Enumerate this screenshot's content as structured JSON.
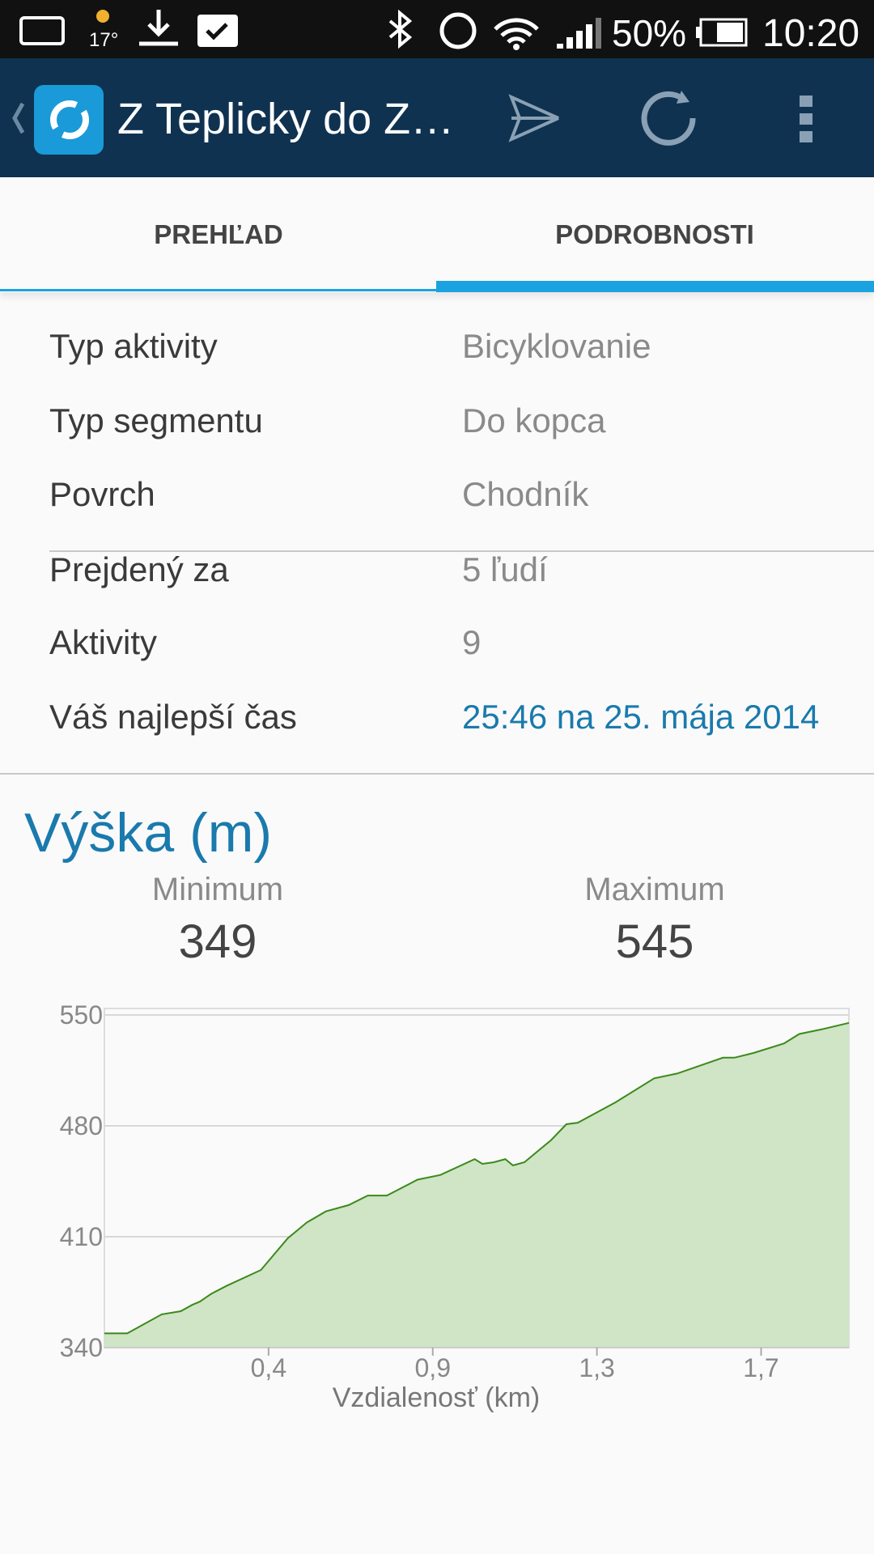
{
  "status_bar": {
    "temperature": "17°",
    "battery": "50%",
    "time": "10:20"
  },
  "app_bar": {
    "title": "Z Teplicky do Z…"
  },
  "tabs": [
    "PREHĽAD",
    "PODROBNOSTI"
  ],
  "details": [
    {
      "label": "Typ aktivity",
      "value": "Bicyklovanie"
    },
    {
      "label": "Typ segmentu",
      "value": "Do kopca"
    },
    {
      "label": "Povrch",
      "value": "Chodník"
    },
    {
      "label": "Prejdený za",
      "value": "5 ľudí"
    },
    {
      "label": "Aktivity",
      "value": "9"
    },
    {
      "label": "Váš najlepší čas",
      "value": "25:46 na 25. mája 2014"
    }
  ],
  "elevation": {
    "title": "Výška (m)",
    "min_label": "Minimum",
    "min": 349,
    "max_label": "Maximum",
    "max": 545
  },
  "chart_data": {
    "type": "area",
    "x": [
      0,
      0.06,
      0.15,
      0.2,
      0.23,
      0.25,
      0.28,
      0.32,
      0.41,
      0.48,
      0.53,
      0.58,
      0.64,
      0.69,
      0.74,
      0.82,
      0.88,
      0.97,
      0.99,
      1.02,
      1.05,
      1.07,
      1.1,
      1.14,
      1.17,
      1.21,
      1.24,
      1.34,
      1.44,
      1.5,
      1.62,
      1.65,
      1.7,
      1.78,
      1.82,
      1.88,
      1.95
    ],
    "values": [
      349,
      349,
      361,
      363,
      367,
      369,
      374,
      379,
      389,
      409,
      419,
      426,
      430,
      436,
      436,
      446,
      449,
      459,
      456,
      457,
      459,
      455,
      457,
      465,
      471,
      481,
      482,
      495,
      510,
      513,
      523,
      523,
      526,
      532,
      538,
      541,
      545
    ],
    "xlabel": "Vzdialenosť (km)",
    "xlim": [
      0,
      1.95
    ],
    "xticks": [
      {
        "value": 0.43,
        "label": "0,4"
      },
      {
        "value": 0.86,
        "label": "0,9"
      },
      {
        "value": 1.29,
        "label": "1,3"
      },
      {
        "value": 1.72,
        "label": "1,7"
      }
    ],
    "ylim": [
      340,
      550
    ],
    "yticks": [
      550,
      480,
      410,
      340
    ],
    "color": "#3a8a1a",
    "fill": "#d0e4c6",
    "grid": true
  }
}
